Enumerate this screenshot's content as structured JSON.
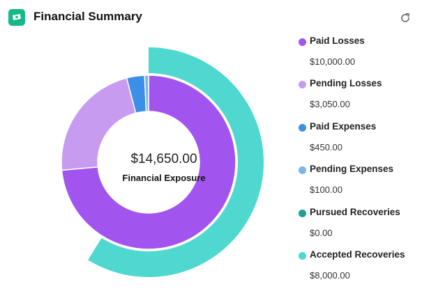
{
  "header": {
    "title": "Financial Summary",
    "icon": "money-icon",
    "refresh_icon": "refresh-icon",
    "accent": "#14b889"
  },
  "chart_data": {
    "type": "pie",
    "center_value": "$14,650.00",
    "center_label": "Financial Exposure",
    "series": [
      {
        "name": "Paid Losses",
        "value": 10000,
        "display": "$10,000.00",
        "color": "#a254ee",
        "ring": "inner"
      },
      {
        "name": "Pending Losses",
        "value": 3050,
        "display": "$3,050.00",
        "color": "#c69bf0",
        "ring": "inner"
      },
      {
        "name": "Paid Expenses",
        "value": 450,
        "display": "$450.00",
        "color": "#3b8fe6",
        "ring": "inner"
      },
      {
        "name": "Pending Expenses",
        "value": 100,
        "display": "$100.00",
        "color": "#7db4ea",
        "ring": "inner"
      },
      {
        "name": "Pursued Recoveries",
        "value": 0,
        "display": "$0.00",
        "color": "#1f9e96",
        "ring": "outer"
      },
      {
        "name": "Accepted Recoveries",
        "value": 8000,
        "display": "$8,000.00",
        "color": "#4ed8cf",
        "ring": "outer"
      }
    ]
  }
}
